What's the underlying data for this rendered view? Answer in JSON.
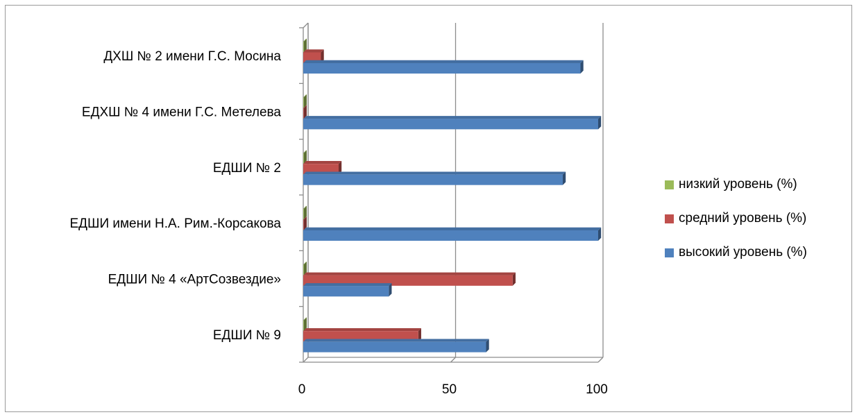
{
  "chart_data": {
    "type": "bar",
    "orientation": "horizontal",
    "categories": [
      "ДХШ № 2 имени Г.С. Мосина",
      "ЕДХШ № 4 имени Г.С. Метелева",
      "ЕДШИ № 2",
      "ЕДШИ имени Н.А. Рим.-Корсакова",
      "ЕДШИ № 4 «АртСозвездие»",
      "ЕДШИ № 9"
    ],
    "series": [
      {
        "name": "низкий уровень (%)",
        "color": "#9bbb59",
        "values": [
          0,
          0,
          0,
          0,
          0,
          0
        ]
      },
      {
        "name": "средний уровень (%)",
        "color": "#c0504d",
        "values": [
          6,
          0,
          12,
          0,
          71,
          39
        ]
      },
      {
        "name": "высокий уровень (%)",
        "color": "#4f81bd",
        "values": [
          94,
          100,
          88,
          100,
          29,
          62
        ]
      }
    ],
    "xlim": [
      0,
      100
    ],
    "xticks": [
      "0",
      "50",
      "100"
    ],
    "grid": "vertical",
    "legend_position": "right"
  }
}
